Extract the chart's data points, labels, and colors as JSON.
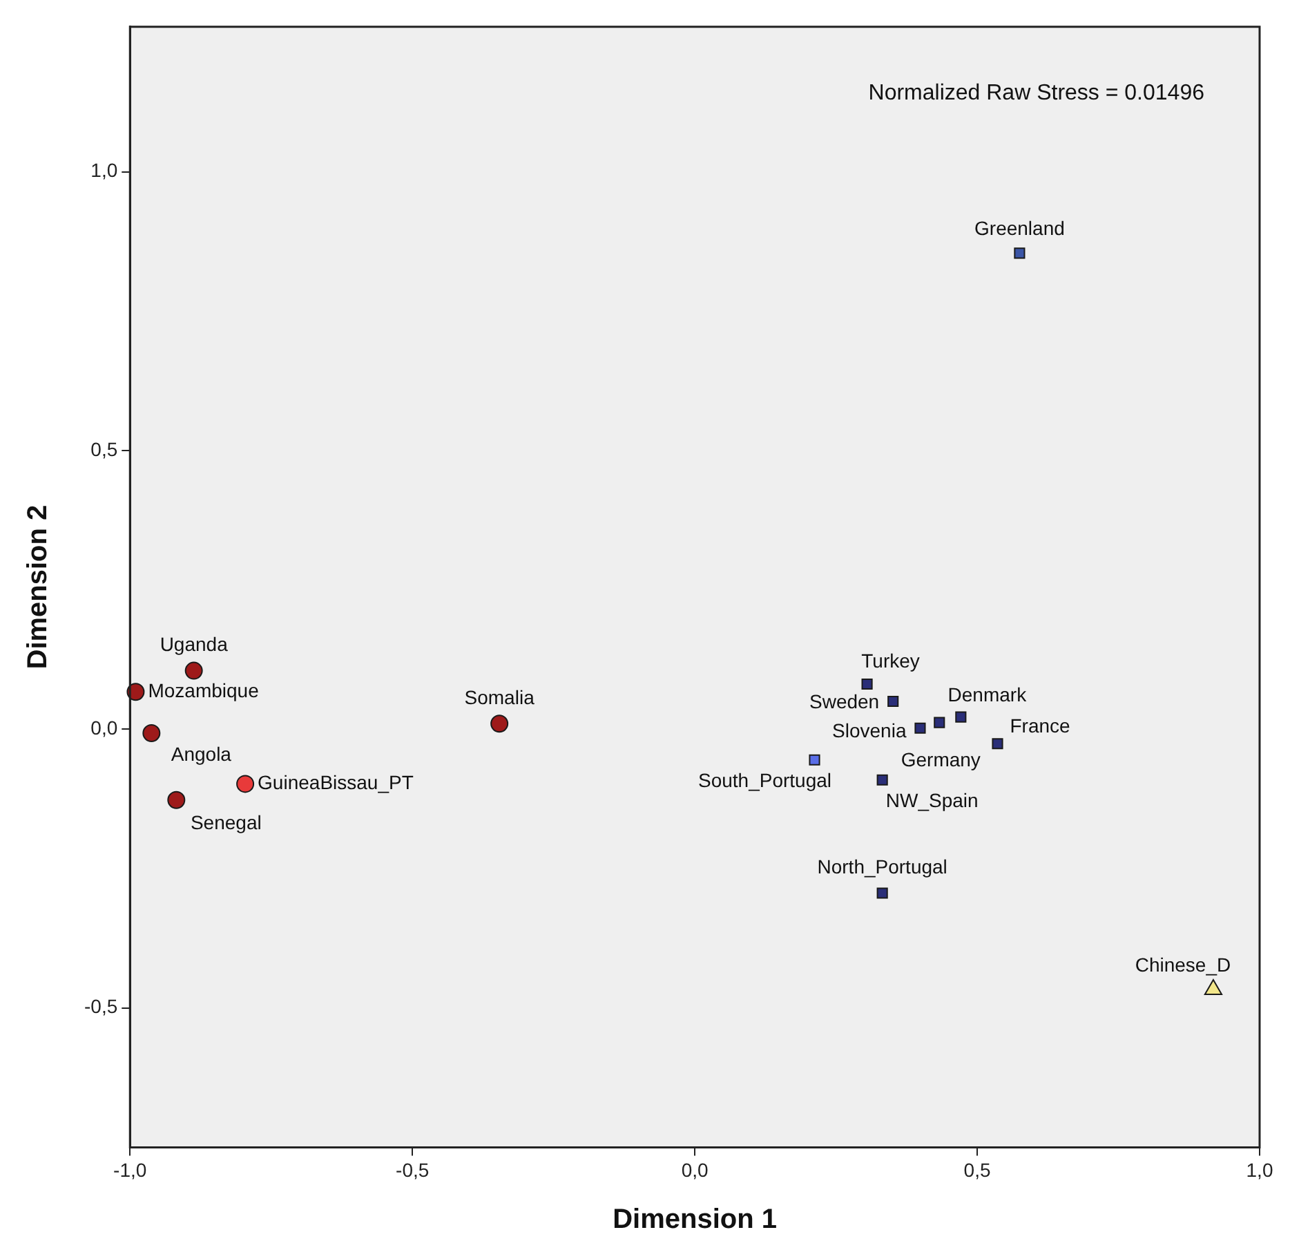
{
  "chart_data": {
    "type": "scatter",
    "xlabel": "Dimension 1",
    "ylabel": "Dimension 2",
    "xlim": [
      -1.0,
      1.0
    ],
    "ylim": [
      -0.75,
      1.26
    ],
    "xticks": [
      {
        "value": -1.0,
        "label": "-1,0"
      },
      {
        "value": -0.5,
        "label": "-0,5"
      },
      {
        "value": 0.0,
        "label": "0,0"
      },
      {
        "value": 0.5,
        "label": "0,5"
      },
      {
        "value": 1.0,
        "label": "1,0"
      }
    ],
    "yticks": [
      {
        "value": -0.5,
        "label": "-0,5"
      },
      {
        "value": 0.0,
        "label": "0,0"
      },
      {
        "value": 0.5,
        "label": "0,5"
      },
      {
        "value": 1.0,
        "label": "1,0"
      }
    ],
    "series": [
      {
        "marker": "circle",
        "x": [
          -0.887,
          -0.99,
          -0.962,
          -0.796,
          -0.918,
          -0.346
        ],
        "values": [
          0.105,
          0.067,
          -0.007,
          -0.098,
          -0.127,
          0.01
        ],
        "colors": [
          "#9e1a1a",
          "#9e1a1a",
          "#9e1a1a",
          "#e83a3a",
          "#9e1a1a",
          "#9e1a1a"
        ]
      },
      {
        "marker": "square",
        "x": [
          0.575,
          0.305,
          0.351,
          0.399,
          0.433,
          0.471,
          0.536,
          0.212,
          0.332,
          0.332
        ],
        "values": [
          0.854,
          0.081,
          0.05,
          0.002,
          0.012,
          0.022,
          -0.026,
          -0.055,
          -0.091,
          -0.294
        ],
        "colors": [
          "#3b55a6",
          "#2a2e78",
          "#2a2e78",
          "#2a2e78",
          "#2a2e78",
          "#2a2e78",
          "#2a2e78",
          "#5a6ee8",
          "#2a2e78",
          "#2a2e78"
        ]
      },
      {
        "marker": "triangle",
        "x": [
          0.918
        ],
        "values": [
          -0.467
        ],
        "colors": [
          "#f2e68a"
        ]
      }
    ],
    "annotations": [
      {
        "text": "Uganda",
        "x": -0.887,
        "y": 0.105
      },
      {
        "text": "Mozambique",
        "x": -0.99,
        "y": 0.067
      },
      {
        "text": "Angola",
        "x": -0.962,
        "y": -0.007
      },
      {
        "text": "GuineaBissau_PT",
        "x": -0.796,
        "y": -0.098
      },
      {
        "text": "Senegal",
        "x": -0.918,
        "y": -0.127
      },
      {
        "text": "Somalia",
        "x": -0.346,
        "y": 0.01
      },
      {
        "text": "Greenland",
        "x": 0.575,
        "y": 0.854
      },
      {
        "text": "Turkey",
        "x": 0.305,
        "y": 0.081
      },
      {
        "text": "Sweden",
        "x": 0.351,
        "y": 0.05
      },
      {
        "text": "Slovenia",
        "x": 0.399,
        "y": 0.002
      },
      {
        "text": "Germany",
        "x": 0.433,
        "y": 0.012
      },
      {
        "text": "Denmark",
        "x": 0.471,
        "y": 0.022
      },
      {
        "text": "France",
        "x": 0.536,
        "y": -0.026
      },
      {
        "text": "South_Portugal",
        "x": 0.212,
        "y": -0.055
      },
      {
        "text": "NW_Spain",
        "x": 0.332,
        "y": -0.091
      },
      {
        "text": "North_Portugal",
        "x": 0.332,
        "y": -0.294
      },
      {
        "text": "Chinese_D",
        "x": 0.918,
        "y": -0.467
      },
      "Normalized Raw Stress = 0.01496"
    ]
  }
}
